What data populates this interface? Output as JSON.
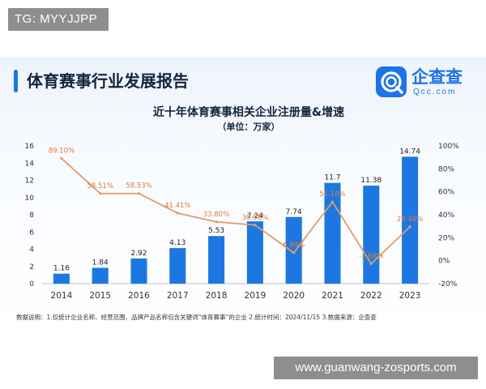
{
  "watermark_top": "TG: MYYJJPP",
  "watermark_bottom": "www.guanwang-zosports.com",
  "report_title": "体育赛事行业发展报告",
  "logo": {
    "cn": "企查查",
    "en": "Qcc.com"
  },
  "footnote": "数据说明：1.仅统计企业名称、经营范围、品牌产品名称包含关键词“体育赛事”的企业  2.统计时间：2024/11/15  3.数据来源：企查查",
  "colors": {
    "bar": "#1c78e0",
    "line": "#e39a6a",
    "label": "#e07a3a",
    "accent": "#1c78e0"
  },
  "chart_data": {
    "type": "bar",
    "title": "近十年体育赛事相关企业注册量&增速",
    "subtitle": "（单位：万家）",
    "categories": [
      "2014",
      "2015",
      "2016",
      "2017",
      "2018",
      "2019",
      "2020",
      "2021",
      "2022",
      "2023"
    ],
    "series": [
      {
        "type": "bar",
        "values": [
          1.16,
          1.84,
          2.92,
          4.13,
          5.53,
          7.24,
          7.74,
          11.7,
          11.38,
          14.74
        ],
        "labels": [
          "1.16",
          "1.84",
          "2.92",
          "4.13",
          "5.53",
          "7.24",
          "7.74",
          "11.7",
          "11.38",
          "14.74"
        ]
      },
      {
        "type": "line",
        "axis": "right",
        "values": [
          89.1,
          58.51,
          58.53,
          41.41,
          33.8,
          30.98,
          6.89,
          51.16,
          -2.68,
          29.48
        ],
        "labels": [
          "89.10%",
          "58.51%",
          "58.53%",
          "41.41%",
          "33.80%",
          "30.98%",
          "6.89%",
          "51.16%",
          "-2.68%",
          "29.48%"
        ]
      }
    ],
    "ylim": [
      0,
      16
    ],
    "yticks": [
      "0",
      "2",
      "4",
      "6",
      "8",
      "10",
      "12",
      "14",
      "16"
    ],
    "y2lim": [
      -20,
      100
    ],
    "y2ticks": [
      "-20%",
      "0%",
      "20%",
      "40%",
      "60%",
      "80%",
      "100%"
    ],
    "grid": false
  }
}
